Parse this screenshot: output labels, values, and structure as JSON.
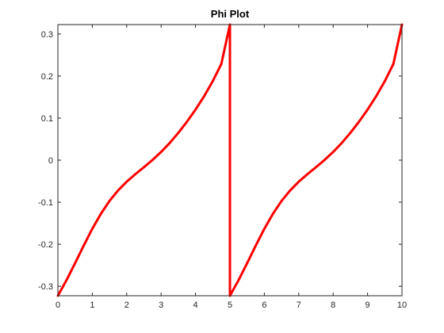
{
  "chart_data": {
    "type": "line",
    "title": "Phi Plot",
    "xlabel": "",
    "ylabel": "",
    "xlim": [
      0,
      10
    ],
    "ylim": [
      -0.3224,
      0.3224
    ],
    "x_ticks": [
      0,
      1,
      2,
      3,
      4,
      5,
      6,
      7,
      8,
      9,
      10
    ],
    "x_tick_labels": [
      "0",
      "1",
      "2",
      "3",
      "4",
      "5",
      "6",
      "7",
      "8",
      "9",
      "10"
    ],
    "y_ticks": [
      -0.3,
      -0.2,
      -0.1,
      0,
      0.1,
      0.2,
      0.3
    ],
    "y_tick_labels": [
      "-0.3",
      "-0.2",
      "-0.1",
      "0",
      "0.1",
      "0.2",
      "0.3"
    ],
    "grid": false,
    "legend": "none",
    "series": [
      {
        "color": "#ff0000",
        "x": [
          0,
          0.25,
          0.5,
          0.75,
          1,
          1.25,
          1.5,
          1.75,
          2,
          2.25,
          2.5,
          2.75,
          3,
          3.25,
          3.5,
          3.75,
          4,
          4.25,
          4.5,
          4.75,
          5,
          5,
          5.25,
          5.5,
          5.75,
          6,
          6.25,
          6.5,
          6.75,
          7,
          7.25,
          7.5,
          7.75,
          8,
          8.25,
          8.5,
          8.75,
          9,
          9.25,
          9.5,
          9.75,
          10
        ],
        "y": [
          -0.3224,
          -0.2855,
          -0.2449,
          -0.2032,
          -0.1633,
          -0.1275,
          -0.097,
          -0.0719,
          -0.0512,
          -0.0335,
          -0.0168,
          0.0005,
          0.0195,
          0.0409,
          0.0649,
          0.0913,
          0.1202,
          0.152,
          0.1877,
          0.2288,
          0.3224,
          -0.3224,
          -0.2855,
          -0.2449,
          -0.2032,
          -0.1633,
          -0.1275,
          -0.097,
          -0.0719,
          -0.0512,
          -0.0335,
          -0.0168,
          0.0005,
          0.0195,
          0.0409,
          0.0649,
          0.0913,
          0.1202,
          0.152,
          0.1877,
          0.2288,
          0.3224
        ]
      }
    ]
  }
}
